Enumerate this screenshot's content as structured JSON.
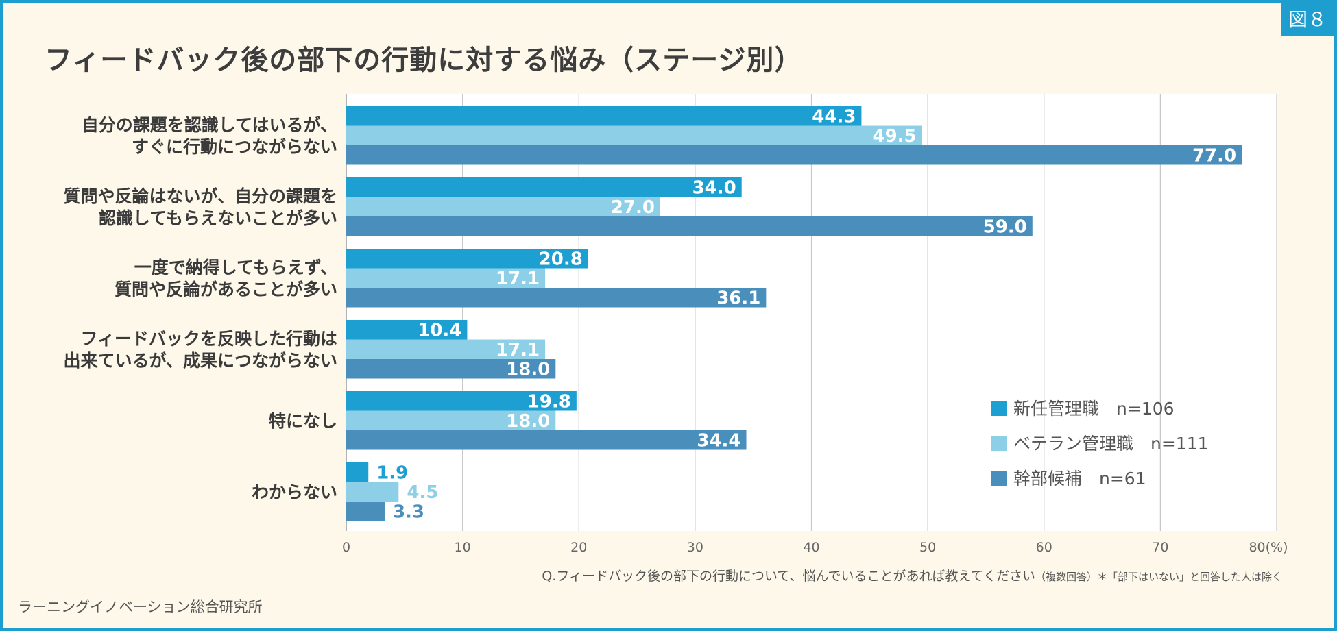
{
  "badge": "図８",
  "title": "フィードバック後の部下の行動に対する悩み（ステージ別）",
  "footnote": {
    "main": "Q.フィードバック後の部下の行動について、悩んでいることがあれば教えてください",
    "note": "（複数回答）＊「部下はいない」と回答した人は除く"
  },
  "source": "ラーニングイノベーション総合研究所",
  "chart_data": {
    "type": "bar",
    "orientation": "horizontal",
    "categories": [
      [
        "自分の課題を認識してはいるが、",
        "すぐに行動につながらない"
      ],
      [
        "質問や反論はないが、自分の課題を",
        "認識してもらえないことが多い"
      ],
      [
        "一度で納得してもらえず、",
        "質問や反論があることが多い"
      ],
      [
        "フィードバックを反映した行動は",
        "出来ているが、成果につながらない"
      ],
      [
        "特になし"
      ],
      [
        "わからない"
      ]
    ],
    "series": [
      {
        "name": "新任管理職",
        "n": "n=106",
        "color": "#1e9fd2",
        "values": [
          44.3,
          34.0,
          20.8,
          10.4,
          19.8,
          1.9
        ],
        "labels": [
          "44.3",
          "34.0",
          "20.8",
          "10.4",
          "19.8",
          "1.9"
        ]
      },
      {
        "name": "ベテラン管理職",
        "n": "n=111",
        "color": "#8ecfe8",
        "values": [
          49.5,
          27.0,
          17.1,
          17.1,
          18.0,
          4.5
        ],
        "labels": [
          "49.5",
          "27.0",
          "17.1",
          "17.1",
          "18.0",
          "4.5"
        ]
      },
      {
        "name": "幹部候補",
        "n": "n=61",
        "color": "#4a8fbc",
        "values": [
          77.0,
          59.0,
          36.1,
          18.0,
          34.4,
          3.3
        ],
        "labels": [
          "77.0",
          "59.0",
          "36.1",
          "18.0",
          "34.4",
          "3.3"
        ]
      }
    ],
    "xlim": [
      0,
      80
    ],
    "xticks": [
      "0",
      "10",
      "20",
      "30",
      "40",
      "50",
      "60",
      "70",
      "80(%)"
    ],
    "grid": true,
    "legend_position": "bottom-right"
  }
}
